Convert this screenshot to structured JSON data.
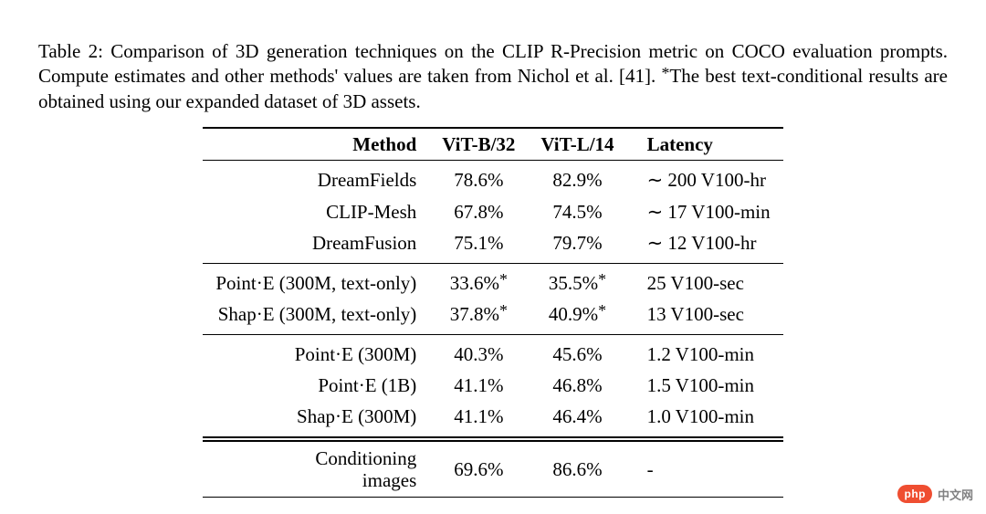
{
  "caption": {
    "prefix": "Table 2:",
    "body": " Comparison of 3D generation techniques on the CLIP R-Precision metric on COCO evaluation prompts. Compute estimates and other methods' values are taken from Nichol et al. [41]. ",
    "footnote_marker": "*",
    "footnote_text": "The best text-conditional results are obtained using our expanded dataset of 3D assets."
  },
  "columns": {
    "method": "Method",
    "vitb": "ViT-B/32",
    "vitl": "ViT-L/14",
    "latency": "Latency"
  },
  "groups": [
    {
      "rows": [
        {
          "method": "DreamFields",
          "vitb": "78.6%",
          "vitb_star": false,
          "vitl": "82.9%",
          "vitl_star": false,
          "latency": "∼ 200 V100-hr"
        },
        {
          "method": "CLIP-Mesh",
          "vitb": "67.8%",
          "vitb_star": false,
          "vitl": "74.5%",
          "vitl_star": false,
          "latency": "∼ 17 V100-min"
        },
        {
          "method": "DreamFusion",
          "vitb": "75.1%",
          "vitb_star": false,
          "vitl": "79.7%",
          "vitl_star": false,
          "latency": "∼ 12 V100-hr"
        }
      ]
    },
    {
      "rows": [
        {
          "method": "Point·E (300M, text-only)",
          "vitb": "33.6%",
          "vitb_star": true,
          "vitl": "35.5%",
          "vitl_star": true,
          "latency": "25 V100-sec"
        },
        {
          "method": "Shap·E (300M, text-only)",
          "vitb": "37.8%",
          "vitb_star": true,
          "vitl": "40.9%",
          "vitl_star": true,
          "latency": "13 V100-sec"
        }
      ]
    },
    {
      "rows": [
        {
          "method": "Point·E (300M)",
          "vitb": "40.3%",
          "vitb_star": false,
          "vitl": "45.6%",
          "vitl_star": false,
          "latency": "1.2 V100-min"
        },
        {
          "method": "Point·E (1B)",
          "vitb": "41.1%",
          "vitb_star": false,
          "vitl": "46.8%",
          "vitl_star": false,
          "latency": "1.5 V100-min"
        },
        {
          "method": "Shap·E (300M)",
          "vitb": "41.1%",
          "vitb_star": false,
          "vitl": "46.4%",
          "vitl_star": false,
          "latency": "1.0 V100-min"
        }
      ]
    }
  ],
  "conditioning": {
    "label_line1": "Conditioning",
    "label_line2": "images",
    "vitb": "69.6%",
    "vitl": "86.6%",
    "latency": "-"
  },
  "watermark": {
    "badge": "php",
    "label": "中文网"
  },
  "colors": {
    "text": "#000000",
    "bg": "#ffffff",
    "badge_bg": "#ef4e31",
    "badge_text": "#ffffff",
    "wm_label": "#818182"
  }
}
